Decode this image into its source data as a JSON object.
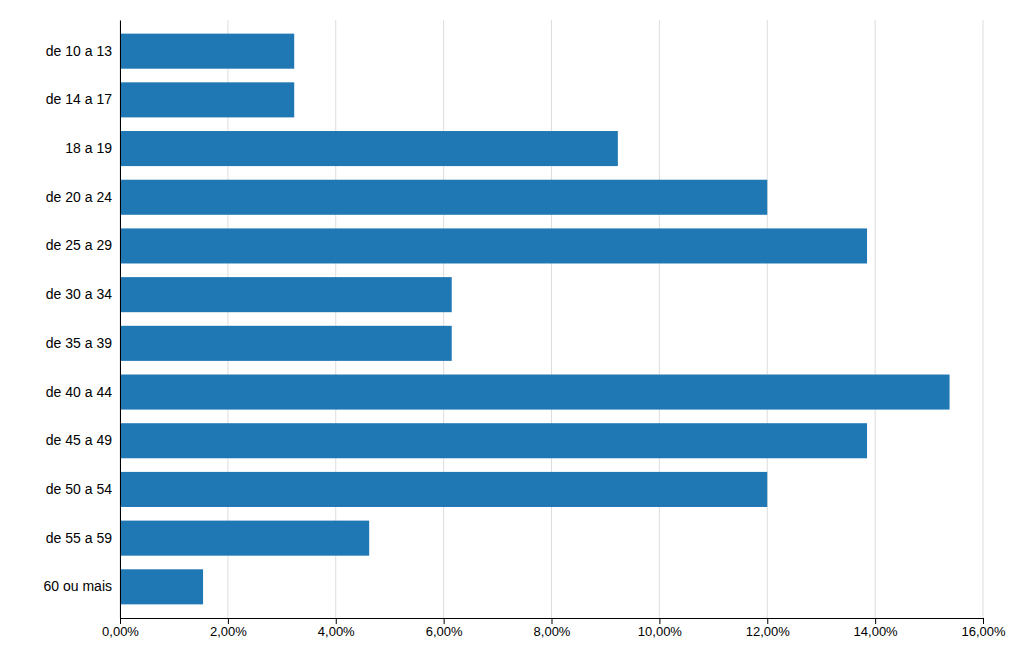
{
  "chart_data": {
    "type": "bar",
    "orientation": "horizontal",
    "categories": [
      "de 10 a 13",
      "de 14 a 17",
      "18 a 19",
      "de 20 a 24",
      "de 25 a 29",
      "de 30 a 34",
      "de 35 a 39",
      "de 40 a 44",
      "de 45 a 49",
      "de 50 a 54",
      "de 55 a 59",
      "60 ou mais"
    ],
    "values": [
      3.23,
      3.23,
      9.23,
      12.0,
      13.85,
      6.15,
      6.15,
      15.38,
      13.85,
      12.0,
      4.62,
      1.54
    ],
    "xlim": [
      0,
      16
    ],
    "xticks": [
      {
        "value": 0,
        "label": "0,00%"
      },
      {
        "value": 2,
        "label": "2,00%"
      },
      {
        "value": 4,
        "label": "4,00%"
      },
      {
        "value": 6,
        "label": "6,00%"
      },
      {
        "value": 8,
        "label": "8,00%"
      },
      {
        "value": 10,
        "label": "10,00%"
      },
      {
        "value": 12,
        "label": "12,00%"
      },
      {
        "value": 14,
        "label": "14,00%"
      },
      {
        "value": 16,
        "label": "16,00%"
      }
    ],
    "grid": true
  }
}
